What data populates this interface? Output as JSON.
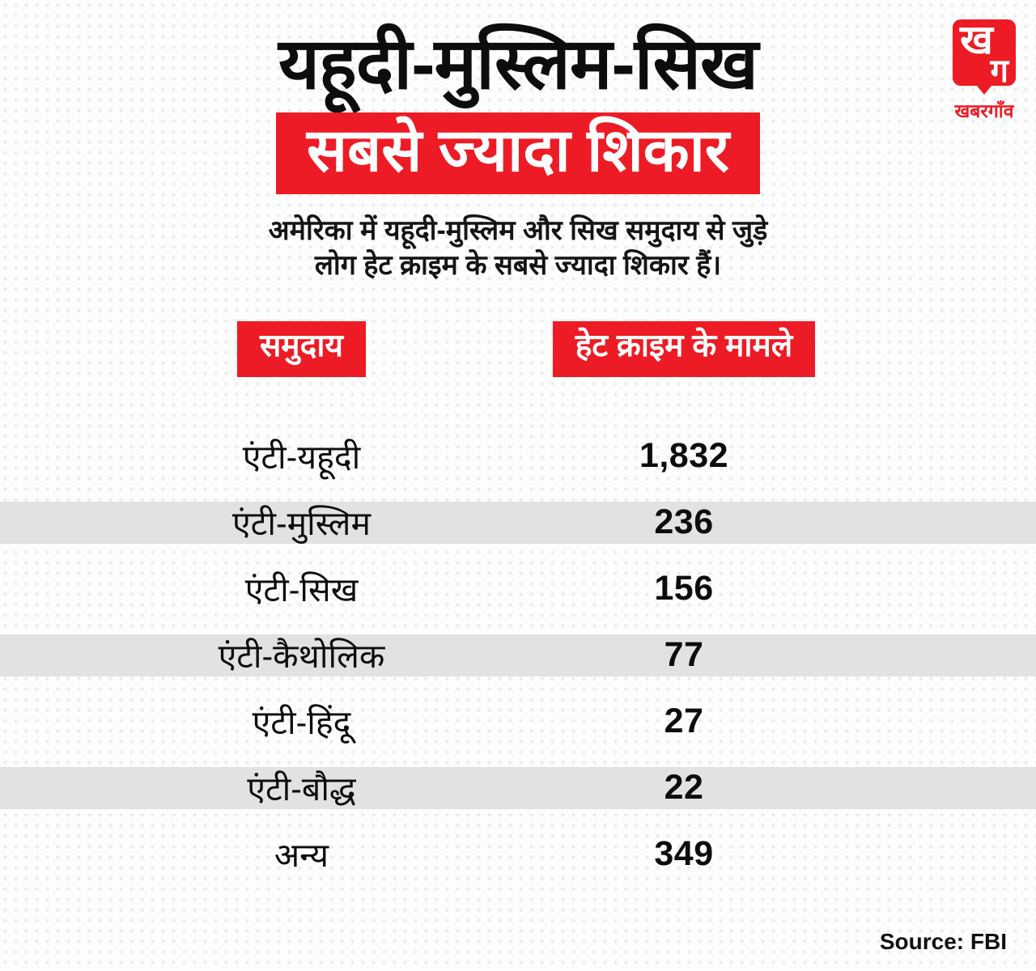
{
  "accent_color": "#ed1b25",
  "stripe_color": "#e3e1e1",
  "logo": {
    "mark_top": "ख",
    "mark_bottom": "ग",
    "name": "खबरगाँव"
  },
  "header": {
    "title_line1": "यहूदी-मुस्लिम-सिख",
    "title_line2": "सबसे ज्यादा शिकार",
    "subtitle_line1": "अमेरिका में यहूदी-मुस्लिम और सिख समुदाय से जुड़े",
    "subtitle_line2": "लोग हेट क्राइम के सबसे ज्यादा शिकार हैं।"
  },
  "table": {
    "col1_header": "समुदाय",
    "col2_header": "हेट क्राइम के मामले",
    "rows": [
      {
        "label": "एंटी-यहूदी",
        "value": "1,832",
        "striped": false
      },
      {
        "label": "एंटी-मुस्लिम",
        "value": "236",
        "striped": true
      },
      {
        "label": "एंटी-सिख",
        "value": "156",
        "striped": false
      },
      {
        "label": "एंटी-कैथोलिक",
        "value": "77",
        "striped": true
      },
      {
        "label": "एंटी-हिंदू",
        "value": "27",
        "striped": false
      },
      {
        "label": "एंटी-बौद्ध",
        "value": "22",
        "striped": true
      },
      {
        "label": "अन्य",
        "value": "349",
        "striped": false
      }
    ]
  },
  "footer": {
    "source": "Source: FBI"
  },
  "chart_data": {
    "type": "table",
    "title": "यहूदी-मुस्लिम-सिख सबसे ज्यादा शिकार",
    "subtitle": "अमेरिका में यहूदी-मुस्लिम और सिख समुदाय से जुड़े लोग हेट क्राइम के सबसे ज्यादा शिकार हैं।",
    "columns": [
      "समुदाय",
      "हेट क्राइम के मामले"
    ],
    "categories": [
      "एंटी-यहूदी",
      "एंटी-मुस्लिम",
      "एंटी-सिख",
      "एंटी-कैथोलिक",
      "एंटी-हिंदू",
      "एंटी-बौद्ध",
      "अन्य"
    ],
    "values": [
      1832,
      236,
      156,
      77,
      27,
      22,
      349
    ],
    "source": "Source: FBI"
  }
}
